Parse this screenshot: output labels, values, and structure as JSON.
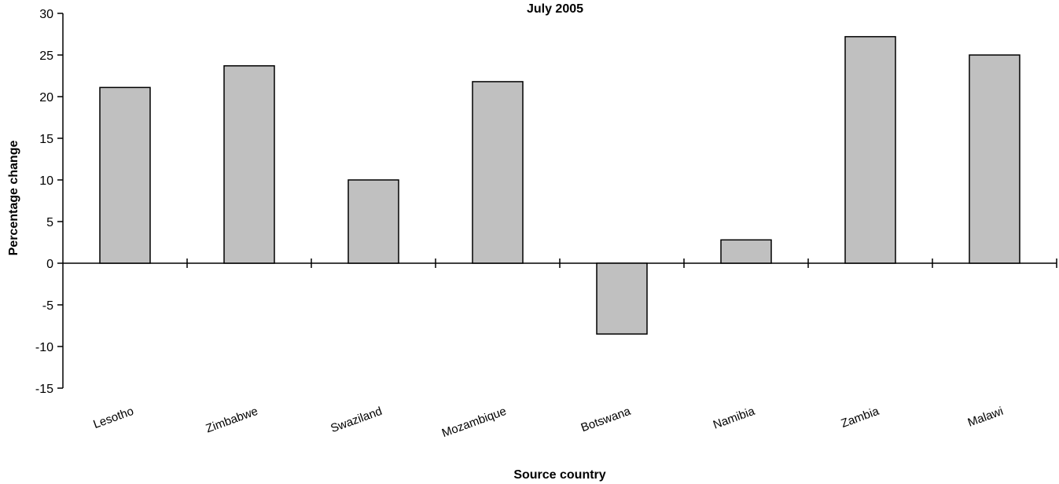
{
  "chart_data": {
    "type": "bar",
    "title": "July 2005",
    "xlabel": "Source country",
    "ylabel": "Percentage change",
    "categories": [
      "Lesotho",
      "Zimbabwe",
      "Swaziland",
      "Mozambique",
      "Botswana",
      "Namibia",
      "Zambia",
      "Malawi"
    ],
    "values": [
      21.1,
      23.7,
      10.0,
      21.8,
      -8.5,
      2.8,
      27.2,
      25.0
    ],
    "ylim": [
      -15,
      30
    ],
    "yticks": [
      "-15",
      "-10",
      "-5",
      "0",
      "5",
      "10",
      "15",
      "20",
      "25",
      "30"
    ],
    "grid": false,
    "bar_color": "#c0c0c0"
  }
}
